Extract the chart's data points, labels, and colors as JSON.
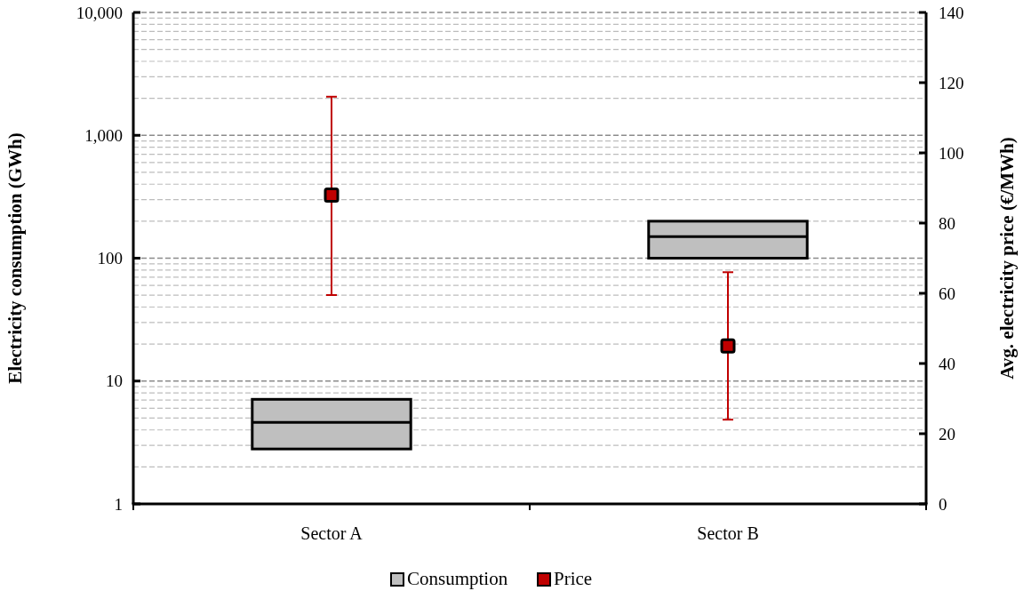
{
  "chart_data": {
    "type": "box",
    "categories": [
      "Sector A",
      "Sector B"
    ],
    "ylabel": "Electricity consumption (GWh)",
    "y2label": "Avg. electricity price (€/MWh)",
    "log": "y",
    "ylim": [
      1,
      10000
    ],
    "yticks": [
      1,
      10,
      100,
      {
        "value": 1000,
        "label": "1,000"
      },
      {
        "value": 10000,
        "label": "10,000"
      }
    ],
    "y2lim": [
      0,
      140
    ],
    "y2ticks": [
      0,
      20,
      40,
      60,
      80,
      100,
      120,
      140
    ],
    "grid": "y",
    "legend": "bottom",
    "series": [
      {
        "name": "Consumption",
        "color": "#bfbfbf",
        "boxes": [
          {
            "low": 2.8,
            "q1": 2.8,
            "median": 4.6,
            "q3": 7.1,
            "high": 7.1
          },
          {
            "low": 100,
            "q1": 100,
            "median": 150,
            "q3": 200,
            "high": 200
          }
        ]
      },
      {
        "name": "Price",
        "type": "scatter",
        "axis": "y2",
        "color": "#c00000",
        "marker": "square",
        "x": [
          "Sector A",
          "Sector B"
        ],
        "values": [
          88,
          45
        ],
        "errors": [
          [
            59.5,
            116
          ],
          [
            24,
            66
          ]
        ]
      }
    ]
  }
}
